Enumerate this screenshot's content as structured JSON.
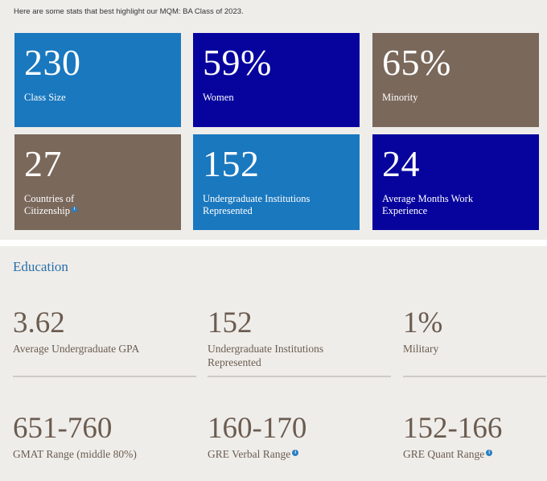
{
  "intro": "Here are some stats that best highlight our MQM: BA Class of 2023.",
  "colors": {
    "blue": "#1a78bf",
    "navy": "#07049e",
    "taupe": "#7a685b",
    "panel_bg": "#efedea",
    "stat_text": "#6b5c50",
    "title_blue": "#2a6fa8"
  },
  "tiles": [
    {
      "value": "230",
      "label_lines": [
        "Class Size"
      ],
      "color": "#1a78bf",
      "info": false
    },
    {
      "value": "59%",
      "label_lines": [
        "Women"
      ],
      "color": "#07049e",
      "info": false
    },
    {
      "value": "65%",
      "label_lines": [
        "Minority"
      ],
      "color": "#7a685b",
      "info": false
    },
    {
      "value": "27",
      "label_lines": [
        "Countries of",
        "Citizenship"
      ],
      "color": "#7a685b",
      "info": true
    },
    {
      "value": "152",
      "label_lines": [
        "Undergraduate Institutions",
        "Represented"
      ],
      "color": "#1a78bf",
      "info": false
    },
    {
      "value": "24",
      "label_lines": [
        "Average Months Work",
        "Experience"
      ],
      "color": "#07049e",
      "info": false
    }
  ],
  "education": {
    "title": "Education",
    "stats": [
      {
        "value": "3.62",
        "label_lines": [
          "Average Undergraduate GPA"
        ],
        "info": false
      },
      {
        "value": "152",
        "label_lines": [
          "Undergraduate Institutions",
          "Represented"
        ],
        "info": false
      },
      {
        "value": "1%",
        "label_lines": [
          "Military"
        ],
        "info": false
      },
      {
        "value": "651-760",
        "label_lines": [
          "GMAT Range (middle 80%)"
        ],
        "info": false
      },
      {
        "value": "160-170",
        "label_lines": [
          "GRE Verbal Range"
        ],
        "info": true
      },
      {
        "value": "152-166",
        "label_lines": [
          "GRE Quant Range"
        ],
        "info": true
      }
    ]
  },
  "info_icon_glyph": "i"
}
